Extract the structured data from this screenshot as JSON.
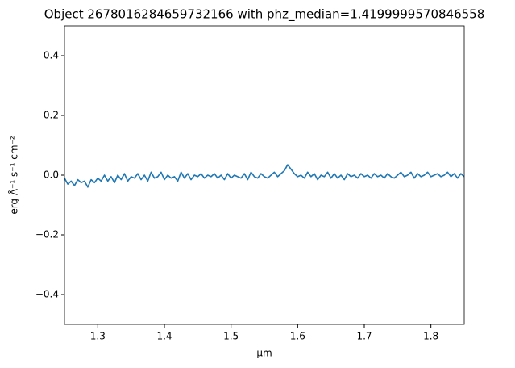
{
  "chart_data": {
    "type": "line",
    "title": "Object 2678016284659732166 with phz_median=1.4199999570846558",
    "x_label": "µm",
    "y_label": "erg Å⁻¹ s⁻¹ cm⁻²",
    "xlim": [
      1.25,
      1.85
    ],
    "ylim": [
      -0.5,
      0.5
    ],
    "xticks": [
      1.3,
      1.4,
      1.5,
      1.6,
      1.7,
      1.8
    ],
    "yticks": [
      {
        "value": -0.4,
        "label": "−0.4"
      },
      {
        "value": -0.2,
        "label": "−0.2"
      },
      {
        "value": 0,
        "label": "0.0"
      },
      0.2,
      0.4
    ],
    "x": [
      1.25,
      1.255,
      1.26,
      1.265,
      1.27,
      1.275,
      1.28,
      1.285,
      1.29,
      1.295,
      1.3,
      1.305,
      1.31,
      1.315,
      1.32,
      1.325,
      1.33,
      1.335,
      1.34,
      1.345,
      1.35,
      1.355,
      1.36,
      1.365,
      1.37,
      1.375,
      1.38,
      1.385,
      1.39,
      1.395,
      1.4,
      1.405,
      1.41,
      1.415,
      1.42,
      1.425,
      1.43,
      1.435,
      1.44,
      1.445,
      1.45,
      1.455,
      1.46,
      1.465,
      1.47,
      1.475,
      1.48,
      1.485,
      1.49,
      1.495,
      1.5,
      1.505,
      1.51,
      1.515,
      1.52,
      1.525,
      1.53,
      1.535,
      1.54,
      1.545,
      1.55,
      1.555,
      1.56,
      1.565,
      1.57,
      1.575,
      1.58,
      1.585,
      1.59,
      1.595,
      1.6,
      1.605,
      1.61,
      1.615,
      1.62,
      1.625,
      1.63,
      1.635,
      1.64,
      1.645,
      1.65,
      1.655,
      1.66,
      1.665,
      1.67,
      1.675,
      1.68,
      1.685,
      1.69,
      1.695,
      1.7,
      1.705,
      1.71,
      1.715,
      1.72,
      1.725,
      1.73,
      1.735,
      1.74,
      1.745,
      1.75,
      1.755,
      1.76,
      1.765,
      1.77,
      1.775,
      1.78,
      1.785,
      1.79,
      1.795,
      1.8,
      1.805,
      1.81,
      1.815,
      1.82,
      1.825,
      1.83,
      1.835,
      1.84,
      1.845,
      1.85
    ],
    "series": [
      {
        "color": "#1f77b4",
        "values": [
          -0.01,
          -0.03,
          -0.02,
          -0.035,
          -0.015,
          -0.025,
          -0.02,
          -0.04,
          -0.015,
          -0.025,
          -0.01,
          -0.02,
          0.0,
          -0.02,
          -0.005,
          -0.025,
          0.0,
          -0.015,
          0.005,
          -0.02,
          -0.005,
          -0.01,
          0.005,
          -0.015,
          0.0,
          -0.02,
          0.01,
          -0.01,
          -0.005,
          0.01,
          -0.015,
          0.0,
          -0.01,
          -0.005,
          -0.02,
          0.01,
          -0.01,
          0.005,
          -0.015,
          0.0,
          -0.005,
          0.005,
          -0.01,
          0.0,
          -0.005,
          0.005,
          -0.01,
          0.0,
          -0.015,
          0.005,
          -0.01,
          0.0,
          -0.005,
          -0.01,
          0.005,
          -0.015,
          0.01,
          -0.005,
          -0.01,
          0.005,
          -0.005,
          -0.01,
          0.0,
          0.01,
          -0.005,
          0.005,
          0.015,
          0.035,
          0.02,
          0.005,
          -0.005,
          0.0,
          -0.01,
          0.01,
          -0.005,
          0.005,
          -0.015,
          0.0,
          -0.005,
          0.01,
          -0.01,
          0.005,
          -0.01,
          0.0,
          -0.015,
          0.005,
          -0.005,
          0.0,
          -0.01,
          0.005,
          -0.005,
          0.0,
          -0.01,
          0.005,
          -0.005,
          0.0,
          -0.01,
          0.005,
          -0.005,
          -0.01,
          0.0,
          0.01,
          -0.005,
          0.0,
          0.01,
          -0.01,
          0.005,
          -0.005,
          0.0,
          0.01,
          -0.005,
          0.0,
          0.005,
          -0.005,
          0.0,
          0.01,
          -0.005,
          0.005,
          -0.01,
          0.005,
          -0.005
        ]
      }
    ]
  }
}
